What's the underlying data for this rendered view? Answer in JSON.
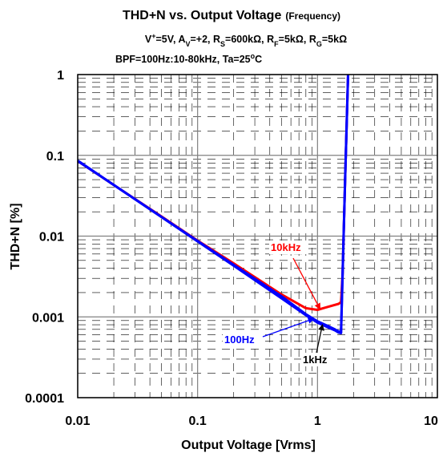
{
  "chart_data": {
    "type": "line",
    "title": "THD+N vs. Output Voltage",
    "title_suffix": "(Frequency)",
    "conditions": {
      "line1": {
        "v_plus": {
          "base": "V",
          "sup": "+",
          "rest": "=5V, "
        },
        "av": {
          "base": "A",
          "sub": "V",
          "rest": "=+2, "
        },
        "rs": {
          "base": "R",
          "sub": "S",
          "rest": "=600kΩ, "
        },
        "rf": {
          "base": "R",
          "sub": "F",
          "rest": "=5kΩ, "
        },
        "rg": {
          "base": "R",
          "sub": "G",
          "rest": "=5kΩ"
        }
      },
      "line2": {
        "pre": "BPF=100Hz:10-80kHz, Ta=25",
        "sup": "o",
        "post": "C"
      }
    },
    "xlabel": "Output Voltage [Vrms]",
    "ylabel": "THD+N [%]",
    "x_scale": "log",
    "y_scale": "log",
    "xlim": [
      0.01,
      10
    ],
    "ylim": [
      0.0001,
      1
    ],
    "x_ticks": [
      {
        "value": 0.01,
        "label": "0.01"
      },
      {
        "value": 0.1,
        "label": "0.1"
      },
      {
        "value": 1,
        "label": "1"
      },
      {
        "value": 10,
        "label": "10"
      }
    ],
    "y_ticks": [
      {
        "value": 1,
        "label": "1"
      },
      {
        "value": 0.1,
        "label": "0.1"
      },
      {
        "value": 0.01,
        "label": "0.01"
      },
      {
        "value": 0.001,
        "label": "0.001"
      },
      {
        "value": 0.0001,
        "label": "0.0001"
      }
    ],
    "grid": true,
    "series": [
      {
        "name": "10kHz",
        "color": "#ff0000",
        "x": [
          0.01,
          0.02,
          0.05,
          0.1,
          0.2,
          0.5,
          0.8,
          1.0,
          1.2,
          1.5,
          1.57,
          1.62,
          1.7,
          1.8
        ],
        "y": [
          0.085,
          0.043,
          0.0175,
          0.0088,
          0.0046,
          0.0019,
          0.00128,
          0.00122,
          0.00132,
          0.00145,
          0.00152,
          0.0035,
          0.05,
          1.0
        ]
      },
      {
        "name": "1kHz",
        "color": "#0000ff",
        "x": [
          0.01,
          0.02,
          0.05,
          0.1,
          0.2,
          0.5,
          0.8,
          1.0,
          1.2,
          1.4,
          1.5,
          1.57,
          1.62,
          1.7,
          1.8
        ],
        "y": [
          0.085,
          0.043,
          0.0172,
          0.0086,
          0.0043,
          0.0017,
          0.00105,
          0.00085,
          0.00075,
          0.00068,
          0.00064,
          0.00063,
          0.0035,
          0.05,
          1.0
        ]
      },
      {
        "name": "100Hz",
        "color": "#0000ff",
        "x": [
          0.01,
          0.02,
          0.05,
          0.1,
          0.2,
          0.5,
          0.8,
          1.0,
          1.2,
          1.4,
          1.5,
          1.57,
          1.62,
          1.7,
          1.8
        ],
        "y": [
          0.086,
          0.043,
          0.0173,
          0.0087,
          0.0044,
          0.0018,
          0.00108,
          0.00088,
          0.00078,
          0.0007,
          0.00066,
          0.00064,
          0.0035,
          0.05,
          1.0
        ]
      }
    ],
    "annotations": [
      {
        "text": "10kHz",
        "color": "#ff0000",
        "point": [
          1.05,
          0.00125
        ]
      },
      {
        "text": "1kHz",
        "color": "#000000",
        "point": [
          1.1,
          0.0008
        ]
      },
      {
        "text": "100Hz",
        "color": "#0000ff",
        "point": [
          0.93,
          0.00095
        ]
      }
    ]
  }
}
